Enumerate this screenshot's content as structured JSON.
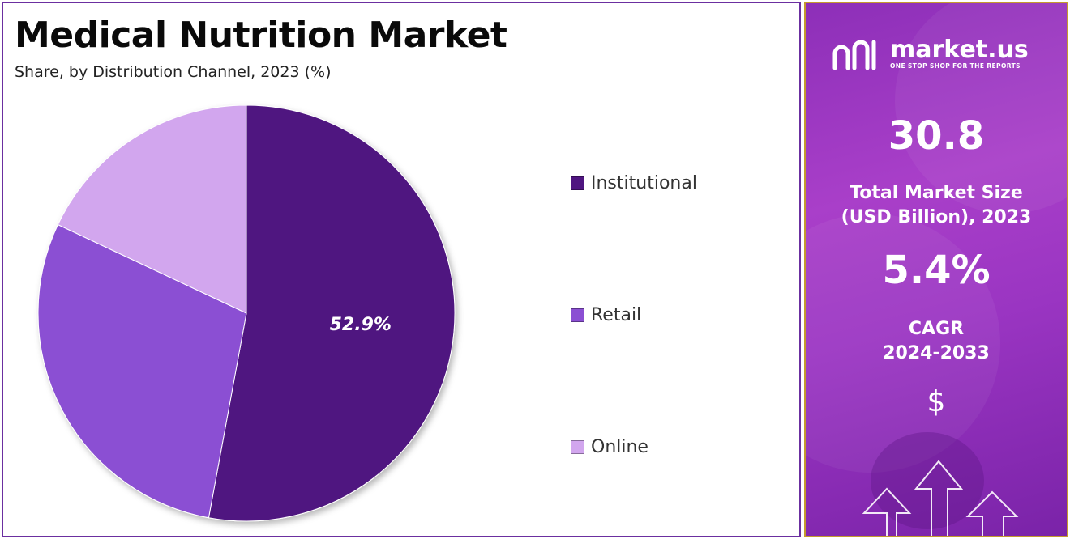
{
  "title": "Medical Nutrition Market",
  "subtitle": "Share, by Distribution Channel, 2023 (%)",
  "chart_data": {
    "type": "pie",
    "title": "Medical Nutrition Market",
    "subtitle": "Share, by Distribution Channel, 2023 (%)",
    "categories": [
      "Institutional",
      "Retail",
      "Online"
    ],
    "values": [
      52.9,
      29.1,
      18.0
    ],
    "colors": [
      "#4f1580",
      "#8b4fd3",
      "#d2a6ee"
    ],
    "data_labels": [
      "52.9%",
      "",
      ""
    ],
    "legend": "right"
  },
  "legend": {
    "items": [
      {
        "label": "Institutional",
        "color": "#4f1580"
      },
      {
        "label": "Retail",
        "color": "#8b4fd3"
      },
      {
        "label": "Online",
        "color": "#d2a6ee"
      }
    ]
  },
  "side_panel": {
    "brand_name": "market.us",
    "brand_tagline": "ONE STOP SHOP FOR THE REPORTS",
    "market_size_value": "30.8",
    "market_size_caption_line1": "Total Market Size",
    "market_size_caption_line2": "(USD Billion), 2023",
    "cagr_value": "5.4%",
    "cagr_caption_line1": "CAGR",
    "cagr_caption_line2": "2024-2033",
    "currency_symbol": "$",
    "icons": [
      "market-us-logo-icon",
      "dollar-icon",
      "up-arrow-icon"
    ]
  }
}
